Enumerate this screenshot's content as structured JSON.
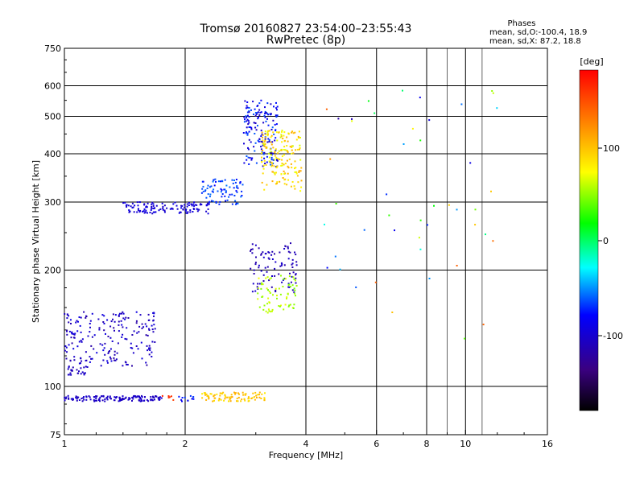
{
  "chart_data": {
    "type": "scatter",
    "title": "Tromsø 20160827 23:54:00–23:55:43",
    "subtitle": "RwPretec (8p)",
    "xlabel": "Frequency [MHz]",
    "ylabel": "Stationary phase Virtual Height [km]",
    "x_scale": "log",
    "y_scale": "log",
    "xlim": [
      1,
      16
    ],
    "ylim": [
      75,
      750
    ],
    "x_ticks": [
      "1",
      "2",
      "4",
      "6",
      "8",
      "10",
      "16"
    ],
    "y_ticks": [
      "750",
      "600",
      "500",
      "400",
      "300",
      "200",
      "100",
      "75"
    ],
    "grid": true,
    "legend": {
      "title": "Phases",
      "line1": "mean, sd,O:-100.4, 18.9",
      "line2": "mean, sd,X:  87.2, 18.8"
    },
    "colorbar": {
      "title": "[deg]",
      "ticks": [
        "100",
        "0",
        "-100"
      ],
      "range": [
        -180,
        180
      ]
    },
    "groups": [
      {
        "xr": [
          1.0,
          1.75
        ],
        "y": 93,
        "dy": 1.5,
        "n": 140,
        "phase": [
          -110,
          -100
        ]
      },
      {
        "xr": [
          1.75,
          1.9
        ],
        "y": 93,
        "dy": 1.5,
        "n": 6,
        "phase": [
          150,
          170
        ]
      },
      {
        "xr": [
          1.9,
          2.1
        ],
        "y": 93,
        "dy": 1.5,
        "n": 12,
        "phase": [
          -90,
          -60
        ]
      },
      {
        "xr": [
          2.2,
          3.2
        ],
        "y": 94,
        "dy": 2.5,
        "n": 90,
        "phase": [
          80,
          110
        ]
      },
      {
        "xr": [
          1.0,
          1.7
        ],
        "y": 135,
        "dy": 22,
        "n": 200,
        "phase": [
          -120,
          -90
        ]
      },
      {
        "xr": [
          1.02,
          1.15
        ],
        "y": 110,
        "dy": 3,
        "n": 25,
        "phase": [
          -115,
          -100
        ]
      },
      {
        "xr": [
          1.4,
          2.3
        ],
        "y": 290,
        "dy": 10,
        "n": 120,
        "phase": [
          -105,
          -90
        ]
      },
      {
        "xr": [
          2.2,
          2.8
        ],
        "y": 320,
        "dy": 25,
        "n": 80,
        "phase": [
          -80,
          -55
        ]
      },
      {
        "xr": [
          2.8,
          3.4
        ],
        "y": 460,
        "dy": 90,
        "n": 160,
        "phase": [
          -110,
          -60
        ]
      },
      {
        "xr": [
          3.1,
          3.9
        ],
        "y": 390,
        "dy": 70,
        "n": 170,
        "phase": [
          60,
          110
        ]
      },
      {
        "xr": [
          2.9,
          3.8
        ],
        "y": 205,
        "dy": 30,
        "n": 90,
        "phase": [
          -120,
          -100
        ]
      },
      {
        "xr": [
          3.0,
          3.8
        ],
        "y": 175,
        "dy": 20,
        "n": 70,
        "phase": [
          40,
          70
        ]
      },
      {
        "xr": [
          4.2,
          12
        ],
        "y": 400,
        "dy": 200,
        "n": 30,
        "phase": [
          -120,
          140
        ]
      },
      {
        "xr": [
          4.5,
          12
        ],
        "y": 200,
        "dy": 100,
        "n": 16,
        "phase": [
          -120,
          140
        ]
      }
    ]
  }
}
